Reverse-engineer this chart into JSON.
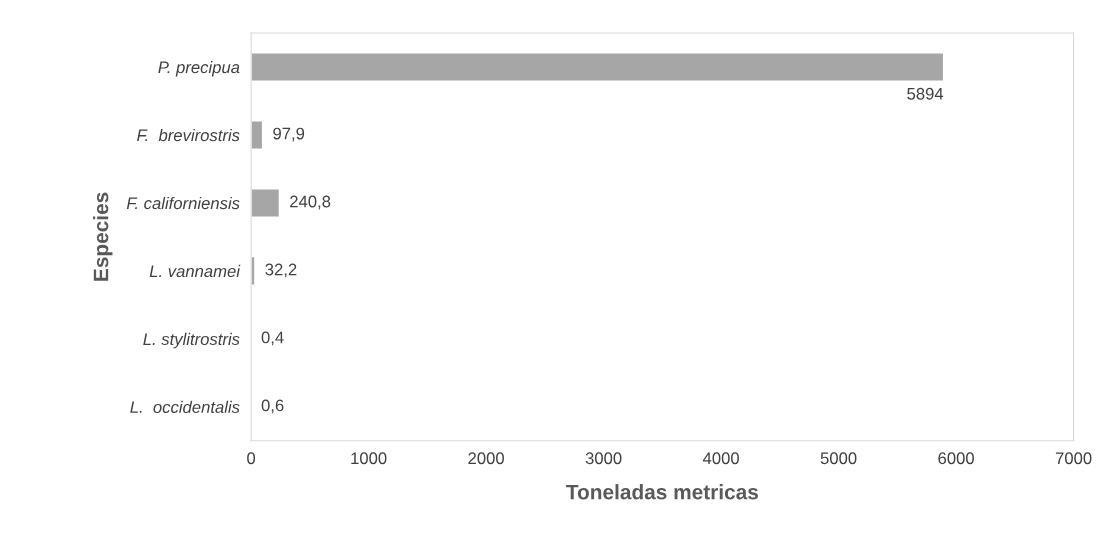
{
  "chart_data": {
    "type": "bar",
    "orientation": "horizontal",
    "xlabel": "Toneladas metricas",
    "ylabel": "Especies",
    "categories": [
      "P. precipua",
      "F.  brevirostris",
      "F. californiensis",
      "L. vannamei",
      "L. stylitrostris",
      "L.  occidentalis"
    ],
    "values": [
      5894,
      97.9,
      240.8,
      32.2,
      0.4,
      0.6
    ],
    "value_labels": [
      "5894",
      "97,9",
      "240,8",
      "32,2",
      "0,4",
      "0,6"
    ],
    "color": "#a6a6a6",
    "xlim": [
      0,
      7000
    ],
    "xticks": [
      0,
      1000,
      2000,
      3000,
      4000,
      5000,
      6000,
      7000
    ],
    "grid": false
  }
}
